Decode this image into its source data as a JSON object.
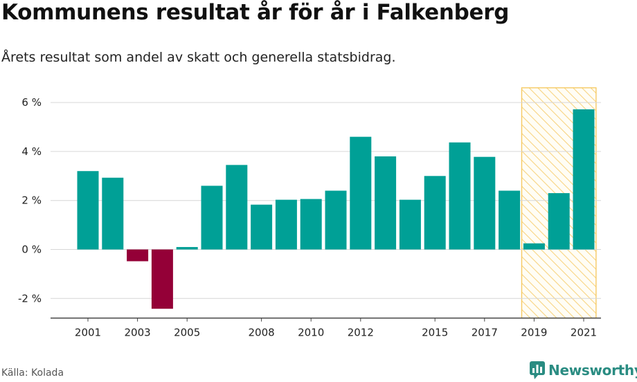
{
  "title": "Kommunens resultat år för år i Falkenberg",
  "subtitle": "Årets resultat som andel av skatt och generella statsbidrag.",
  "source": "Källa: Kolada",
  "brand": {
    "name": "Newsworthy",
    "icon": "newsworthy-logo-icon",
    "color": "#2a8c82"
  },
  "colors": {
    "positive": "#00a096",
    "negative": "#940037",
    "highlight": "#f5c75a"
  },
  "chart_data": {
    "type": "bar",
    "x": [
      2001,
      2002,
      2003,
      2004,
      2005,
      2006,
      2007,
      2008,
      2009,
      2010,
      2011,
      2012,
      2013,
      2014,
      2015,
      2016,
      2017,
      2018,
      2019,
      2020,
      2021
    ],
    "values": [
      3.2,
      2.93,
      -0.48,
      -2.42,
      0.1,
      2.6,
      3.45,
      1.83,
      2.03,
      2.06,
      2.4,
      4.6,
      3.8,
      2.03,
      3.0,
      4.37,
      3.78,
      2.4,
      0.25,
      2.3,
      5.72
    ],
    "x_tick_labels": [
      "2001",
      "2003",
      "2005",
      "2008",
      "2010",
      "2012",
      "2015",
      "2017",
      "2019",
      "2021"
    ],
    "y_tick_labels": [
      "6 %",
      "4 %",
      "2 %",
      "0 %",
      "-2 %"
    ],
    "y_ticks": [
      6,
      4,
      2,
      0,
      -2
    ],
    "ylim": [
      -2.8,
      6.6
    ],
    "highlight_range": [
      2019,
      2021
    ],
    "grid": true
  }
}
